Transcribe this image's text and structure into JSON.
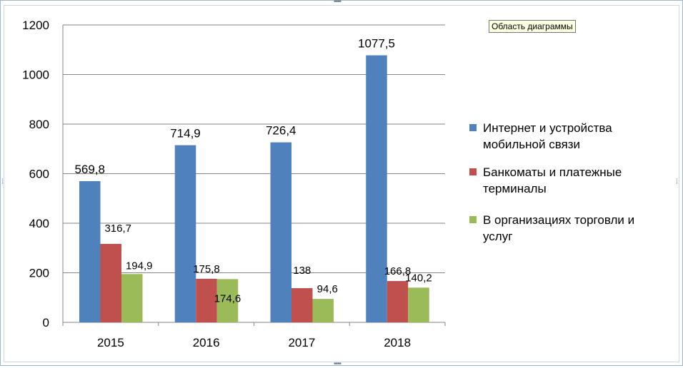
{
  "tooltip": "Область диаграммы",
  "colors": {
    "series1": "#4f81bd",
    "series2": "#c0504d",
    "series3": "#9bbb59",
    "grid": "#868686"
  },
  "chart_data": {
    "type": "bar",
    "categories": [
      "2015",
      "2016",
      "2017",
      "2018"
    ],
    "series": [
      {
        "name": "Интернет и устройства мобильной связи",
        "legend_lines": [
          "Интернет и устройства",
          "мобильной связи"
        ],
        "values": [
          569.8,
          714.9,
          726.4,
          1077.5
        ],
        "labels": [
          "569,8",
          "714,9",
          "726,4",
          "1077,5"
        ]
      },
      {
        "name": "Банкоматы и платежные терминалы",
        "legend_lines": [
          "Банкоматы и платежные",
          "терминалы"
        ],
        "values": [
          316.7,
          175.8,
          138,
          166.8
        ],
        "labels": [
          "316,7",
          "175,8",
          "138",
          "166,8"
        ]
      },
      {
        "name": "В организациях торговли и услуг",
        "legend_lines": [
          "В организациях торговли и",
          "услуг"
        ],
        "values": [
          194.9,
          174.6,
          94.6,
          140.2
        ],
        "labels": [
          "194,9",
          "174,6",
          "94,6",
          "140,2"
        ]
      }
    ],
    "yticks": [
      "0",
      "200",
      "400",
      "600",
      "800",
      "1000",
      "1200"
    ],
    "ylim": [
      0,
      1200
    ],
    "grid": true,
    "legend_position": "right"
  }
}
